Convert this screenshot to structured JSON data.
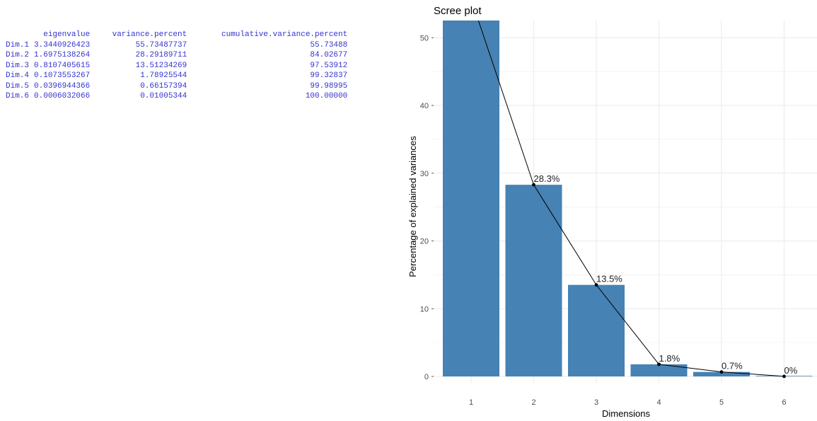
{
  "console": {
    "headers": [
      "",
      "eigenvalue",
      "variance.percent",
      "cumulative.variance.percent"
    ],
    "rows": [
      [
        "Dim.1",
        "3.3440926423",
        "55.73487737",
        "55.73488"
      ],
      [
        "Dim.2",
        "1.6975138264",
        "28.29189711",
        "84.02677"
      ],
      [
        "Dim.3",
        "0.8107405615",
        "13.51234269",
        "97.53912"
      ],
      [
        "Dim.4",
        "0.1073553267",
        "1.78925544",
        "99.32837"
      ],
      [
        "Dim.5",
        "0.0396944366",
        "0.66157394",
        "99.98995"
      ],
      [
        "Dim.6",
        "0.0006032066",
        "0.01005344",
        "100.00000"
      ]
    ]
  },
  "chart_data": {
    "type": "bar",
    "title": "Scree plot",
    "xlabel": "Dimensions",
    "ylabel": "Percentage of explained variances",
    "categories": [
      "1",
      "2",
      "3",
      "4",
      "5",
      "6"
    ],
    "values": [
      55.73487737,
      28.29189711,
      13.51234269,
      1.78925544,
      0.66157394,
      0.01005344
    ],
    "labels": [
      "",
      "28.3%",
      "13.5%",
      "1.8%",
      "0.7%",
      "0%"
    ],
    "line_overlay": true,
    "ylim": [
      0,
      52.5
    ],
    "yticks": [
      0,
      10,
      20,
      30,
      40,
      50
    ],
    "grid": true,
    "colors": {
      "bar": "#4682b4",
      "line": "#000000",
      "grid": "#ebebeb"
    }
  }
}
